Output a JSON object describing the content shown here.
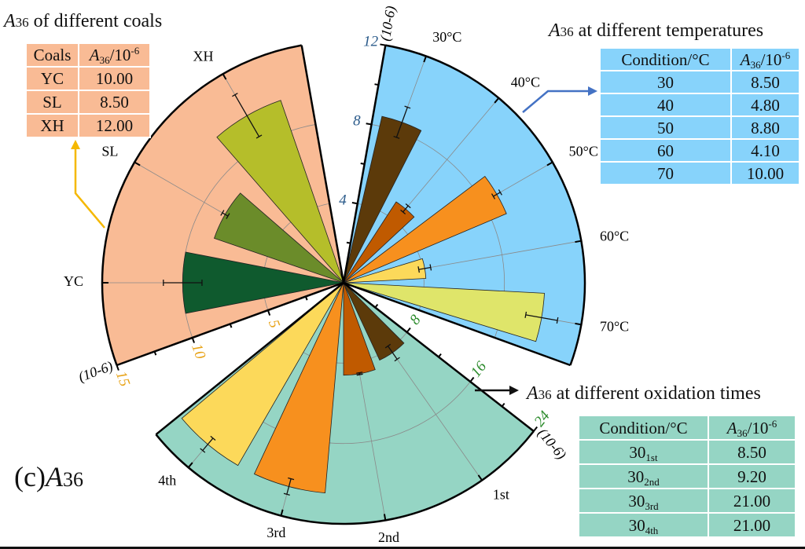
{
  "figure_label": {
    "prefix": "(c)",
    "var": "A",
    "num": "36"
  },
  "chart_data": [
    {
      "type": "bar",
      "polar": true,
      "title": {
        "var": "A",
        "num": "36",
        "text": " of different coals"
      },
      "categories": [
        "YC",
        "SL",
        "XH"
      ],
      "values": [
        10.0,
        8.5,
        12.0
      ],
      "errors": [
        1.2,
        0.2,
        1.5
      ],
      "range": [
        0,
        15
      ],
      "ticks": [
        5,
        10,
        15
      ],
      "unit": "(10-6)",
      "sector_color": "#f9bb95",
      "bar_colors": [
        "#0f5a2e",
        "#6b8c2a",
        "#b5be2a"
      ],
      "tick_label_color": "#e8a317",
      "arrow_color": "#f5b800"
    },
    {
      "type": "bar",
      "polar": true,
      "title": {
        "var": "A",
        "num": "36",
        "text": " at different temperatures"
      },
      "categories": [
        "30°C",
        "40°C",
        "50°C",
        "60°C",
        "70°C"
      ],
      "values": [
        8.5,
        4.8,
        8.8,
        4.1,
        10.0
      ],
      "errors": [
        0.8,
        0.2,
        0.2,
        0.3,
        0.8
      ],
      "range": [
        0,
        12
      ],
      "ticks": [
        4,
        8,
        12
      ],
      "unit": "(10-6)",
      "sector_color": "#87d3fb",
      "bar_colors": [
        "#5c3a0a",
        "#c05a00",
        "#f7901e",
        "#fcd95a",
        "#dfe56a"
      ],
      "tick_label_color": "#2a5a8a",
      "arrow_color": "#4472c4"
    },
    {
      "type": "bar",
      "polar": true,
      "title": {
        "var": "A",
        "num": "36",
        "text": " at different oxidation times"
      },
      "categories": [
        "1st",
        "2nd",
        "3rd",
        "4th"
      ],
      "values": [
        8.5,
        9.2,
        21.0,
        21.0
      ],
      "errors": [
        0.8,
        0.1,
        0.8,
        0.8
      ],
      "range": [
        0,
        24
      ],
      "ticks": [
        8,
        16,
        24
      ],
      "unit": "(10-6)",
      "sector_color": "#95d5c4",
      "bar_colors": [
        "#5c3a0a",
        "#c05a00",
        "#f7901e",
        "#fcd95a"
      ],
      "tick_label_color": "#2a8a2a",
      "arrow_color": "#111111"
    }
  ],
  "tables": {
    "coals": {
      "header": [
        "Coals",
        {
          "var": "A",
          "sub": "36",
          "rest": "/10",
          "sup": "-6"
        }
      ],
      "rows": [
        [
          "YC",
          "10.00"
        ],
        [
          "SL",
          "8.50"
        ],
        [
          "XH",
          "12.00"
        ]
      ]
    },
    "temperatures": {
      "header": [
        "Condition/°C",
        {
          "var": "A",
          "sub": "36",
          "rest": "/10",
          "sup": "-6"
        }
      ],
      "rows": [
        [
          "30",
          "8.50"
        ],
        [
          "40",
          "4.80"
        ],
        [
          "50",
          "8.80"
        ],
        [
          "60",
          "4.10"
        ],
        [
          "70",
          "10.00"
        ]
      ]
    },
    "times": {
      "header": [
        "Condition/°C",
        {
          "var": "A",
          "sub": "36",
          "rest": "/10",
          "sup": "-6"
        }
      ],
      "rows": [
        {
          "base": "30",
          "sub": "1st",
          "value": "8.50"
        },
        {
          "base": "30",
          "sub": "2nd",
          "value": "9.20"
        },
        {
          "base": "30",
          "sub": "3rd",
          "value": "21.00"
        },
        {
          "base": "30",
          "sub": "4th",
          "value": "21.00"
        }
      ]
    }
  }
}
